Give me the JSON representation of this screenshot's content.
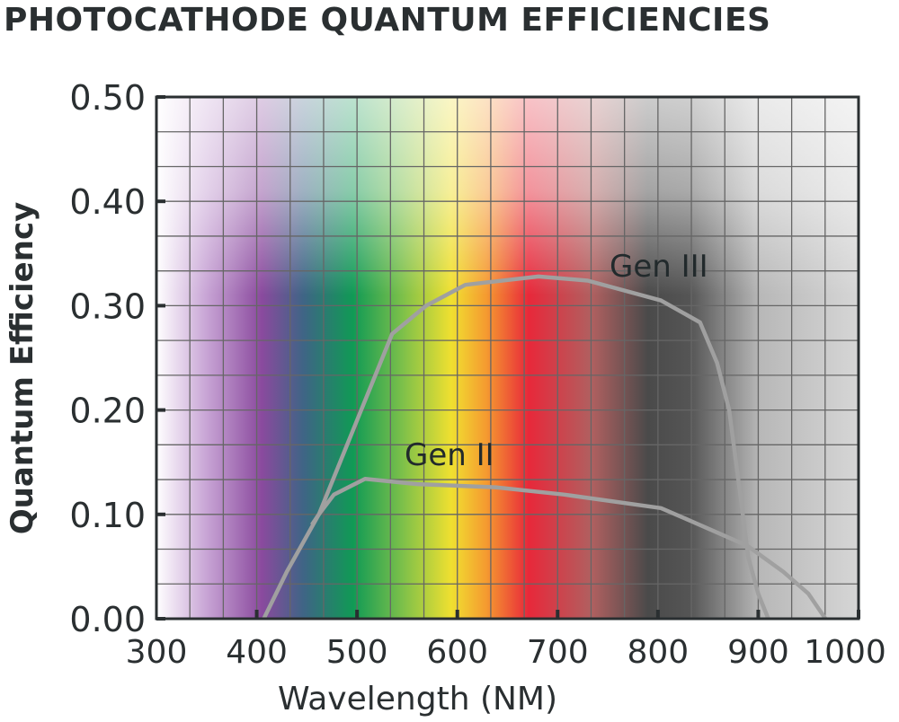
{
  "chart_data": {
    "type": "line",
    "title": "PHOTOCATHODE QUANTUM EFFICIENCIES",
    "xlabel": "Wavelength (NM)",
    "ylabel": "Quantum Efficiency",
    "xlim": [
      300,
      1000
    ],
    "ylim": [
      0,
      0.5
    ],
    "xticks": [
      "300",
      "400",
      "500",
      "600",
      "700",
      "800",
      "900",
      "1000"
    ],
    "yticks": [
      "0.00",
      "0.10",
      "0.20",
      "0.30",
      "0.40",
      "0.50"
    ],
    "grid": true,
    "background": "visible spectrum color gradient",
    "series": [
      {
        "name": "Gen III",
        "color": "#a0a0a0",
        "x": [
          407,
          430,
          462,
          500,
          535,
          569,
          608,
          681,
          730,
          803,
          842,
          859,
          871,
          883,
          890,
          900,
          910
        ],
        "y": [
          0,
          0.045,
          0.1,
          0.19,
          0.273,
          0.3,
          0.32,
          0.328,
          0.324,
          0.305,
          0.284,
          0.245,
          0.2,
          0.112,
          0.059,
          0.024,
          0
        ]
      },
      {
        "name": "Gen II",
        "color": "#a0a0a0",
        "x": [
          455,
          462,
          477,
          508,
          560,
          638,
          706,
          803,
          832,
          889,
          925,
          950,
          967
        ],
        "y": [
          0.09,
          0.1,
          0.119,
          0.134,
          0.129,
          0.126,
          0.119,
          0.106,
          0.094,
          0.07,
          0.045,
          0.024,
          0
        ]
      }
    ]
  }
}
